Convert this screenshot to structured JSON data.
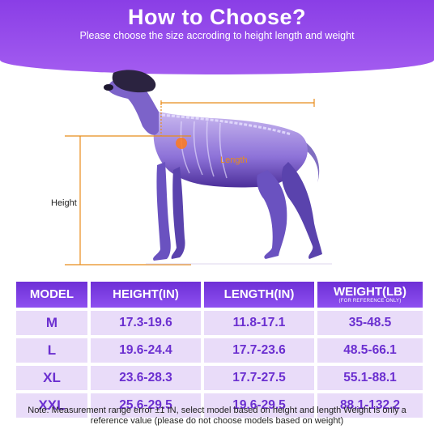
{
  "header": {
    "title": "How to Choose?",
    "subtitle": "Please choose the size accroding to height length and weight"
  },
  "figure": {
    "length_label": "Length",
    "height_label": "Height",
    "accent_color": "#e88c1a"
  },
  "table": {
    "headers": {
      "model": "MODEL",
      "height": "HEIGHT(IN)",
      "length": "LENGTH(IN)",
      "weight": "WEIGHT(LB)",
      "weight_note": "(FOR REFERENCE ONLY)"
    },
    "rows": [
      {
        "model": "M",
        "height": "17.3-19.6",
        "length": "11.8-17.1",
        "weight": "35-48.5"
      },
      {
        "model": "L",
        "height": "19.6-24.4",
        "length": "17.7-23.6",
        "weight": "48.5-66.1"
      },
      {
        "model": "XL",
        "height": "23.6-28.3",
        "length": "17.7-27.5",
        "weight": "55.1-88.1"
      },
      {
        "model": "XXL",
        "height": "25.6-29.5",
        "length": "19.6-29.5",
        "weight": "88.1-132.2"
      }
    ]
  },
  "note": {
    "line1": "Note: Measurement range error ±1 IN, select model based on height and length Weight is only a",
    "line2": "reference value (please do not choose models based on weight)"
  },
  "colors": {
    "header": "#8a3ee6",
    "table_header": "#6e2fd6",
    "table_cell_bg": "#e9dcf9",
    "table_text": "#6b2fd0"
  }
}
